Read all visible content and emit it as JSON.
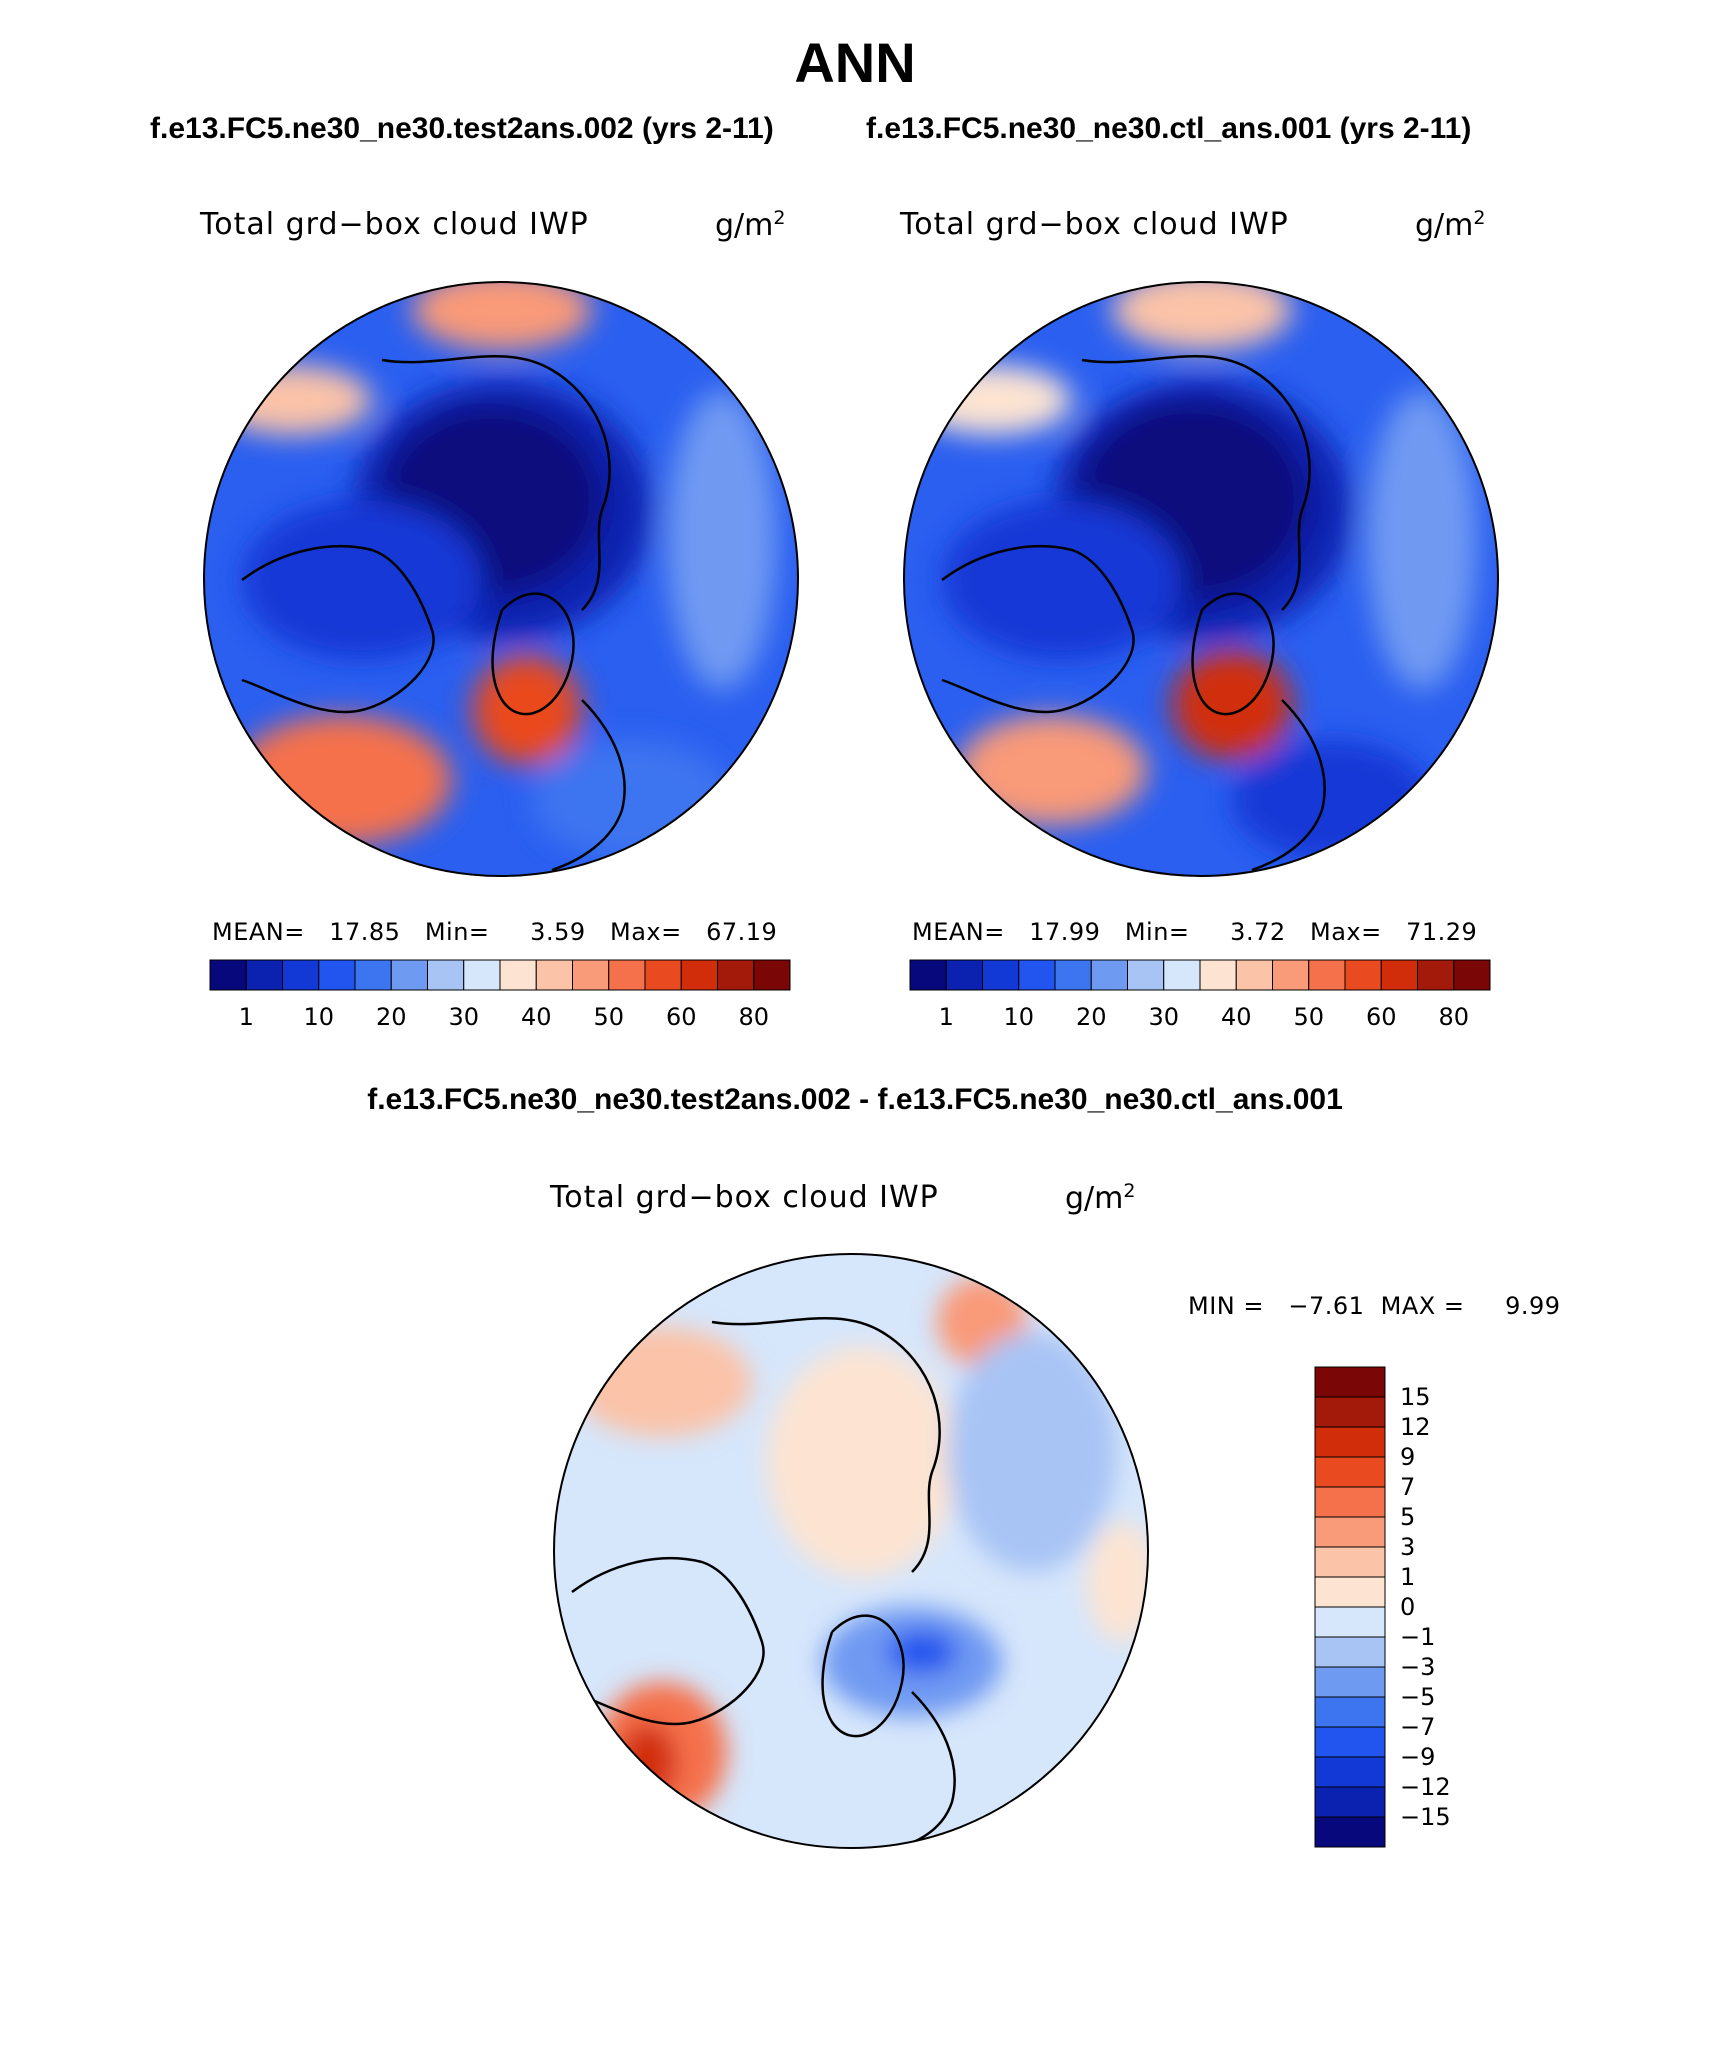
{
  "title": "ANN",
  "subtitle_left": "f.e13.FC5.ne30_ne30.test2ans.002 (yrs 2-11)",
  "subtitle_right": "f.e13.FC5.ne30_ne30.ctl_ans.001 (yrs 2-11)",
  "diff_title": "f.e13.FC5.ne30_ne30.test2ans.002 - f.e13.FC5.ne30_ne30.ctl_ans.001",
  "panels": [
    {
      "variable": "Total grd−box cloud IWP",
      "unit": "g/m",
      "unit_sup": "2",
      "stats": "MEAN=   17.85   Min=     3.59   Max=   67.19"
    },
    {
      "variable": "Total grd−box cloud IWP",
      "unit": "g/m",
      "unit_sup": "2",
      "stats": "MEAN=   17.99   Min=     3.72   Max=   71.29"
    },
    {
      "variable": "Total grd−box cloud IWP",
      "unit": "g/m",
      "unit_sup": "2",
      "stats": "MIN =   −7.61  MAX =     9.99"
    }
  ],
  "colorbar_main": {
    "colors": [
      "#08087d",
      "#0b22b0",
      "#1238d6",
      "#2255ef",
      "#3d74f0",
      "#6f9af2",
      "#a8c4f5",
      "#d7e7fb",
      "#fde4d2",
      "#fbc3a8",
      "#f99a78",
      "#f5714b",
      "#ea4a1f",
      "#d12d0b",
      "#a3190a",
      "#7a0606"
    ],
    "labels": [
      "1",
      "10",
      "20",
      "30",
      "40",
      "50",
      "60",
      "80"
    ]
  },
  "colorbar_diff": {
    "colors": [
      "#7a0606",
      "#a3190a",
      "#d12d0b",
      "#ea4a1f",
      "#f5714b",
      "#f99a78",
      "#fbc3a8",
      "#fde4d2",
      "#d7e7fb",
      "#a8c4f5",
      "#6f9af2",
      "#3d74f0",
      "#2255ef",
      "#1238d6",
      "#0b22b0",
      "#08087d"
    ],
    "labels": [
      "15",
      "12",
      "9",
      "7",
      "5",
      "3",
      "1",
      "0",
      "−1",
      "−3",
      "−5",
      "−7",
      "−9",
      "−12",
      "−15"
    ]
  },
  "map_colors": {
    "background_main": "#2a5ff0",
    "background_diff": "#d6e6fb",
    "coastline": "#000000"
  }
}
